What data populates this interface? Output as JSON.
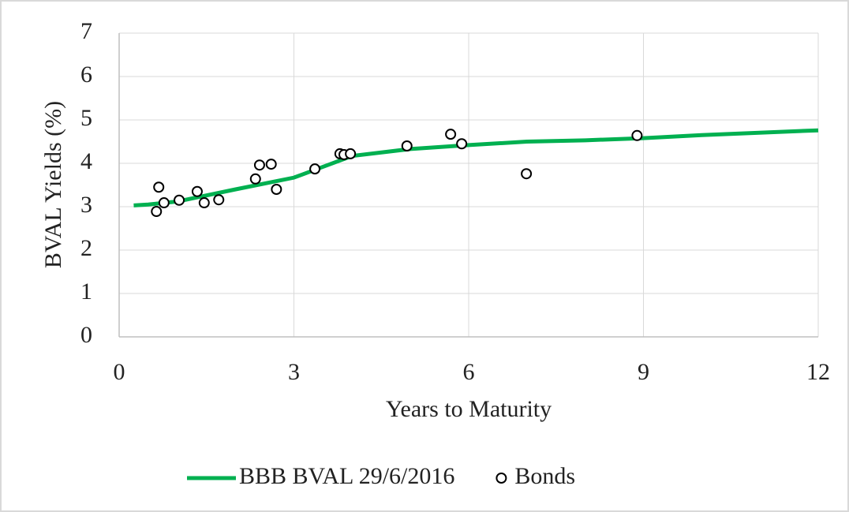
{
  "chart_data": {
    "type": "scatter",
    "xlabel": "Years to Maturity",
    "ylabel": "BVAL Yields (%)",
    "xlim": [
      0,
      12
    ],
    "xticks": [
      0,
      3,
      6,
      9,
      12
    ],
    "ylim": [
      0,
      7
    ],
    "yticks": [
      0,
      1,
      2,
      3,
      4,
      5,
      6,
      7
    ],
    "grid": true,
    "legend": "bottom",
    "series": [
      {
        "name": "BBB BVAL 29/6/2016",
        "type": "line",
        "color": "#00b050",
        "x": [
          0.25,
          0.5,
          1,
          2,
          3,
          4,
          5,
          6,
          7,
          8,
          9,
          10,
          12
        ],
        "values": [
          3.03,
          3.05,
          3.12,
          3.4,
          3.67,
          4.17,
          4.33,
          4.42,
          4.5,
          4.53,
          4.58,
          4.65,
          4.76
        ]
      },
      {
        "name": "Bonds",
        "type": "markers",
        "color": "#000000",
        "x": [
          0.64,
          0.68,
          0.77,
          1.03,
          1.34,
          1.46,
          1.71,
          2.34,
          2.41,
          2.61,
          2.7,
          3.36,
          3.79,
          3.86,
          3.97,
          4.94,
          5.69,
          5.88,
          6.99,
          8.89
        ],
        "values": [
          2.89,
          3.45,
          3.09,
          3.15,
          3.35,
          3.09,
          3.16,
          3.64,
          3.96,
          3.98,
          3.4,
          3.87,
          4.22,
          4.2,
          4.22,
          4.4,
          4.67,
          4.45,
          3.76,
          4.64
        ]
      }
    ]
  }
}
